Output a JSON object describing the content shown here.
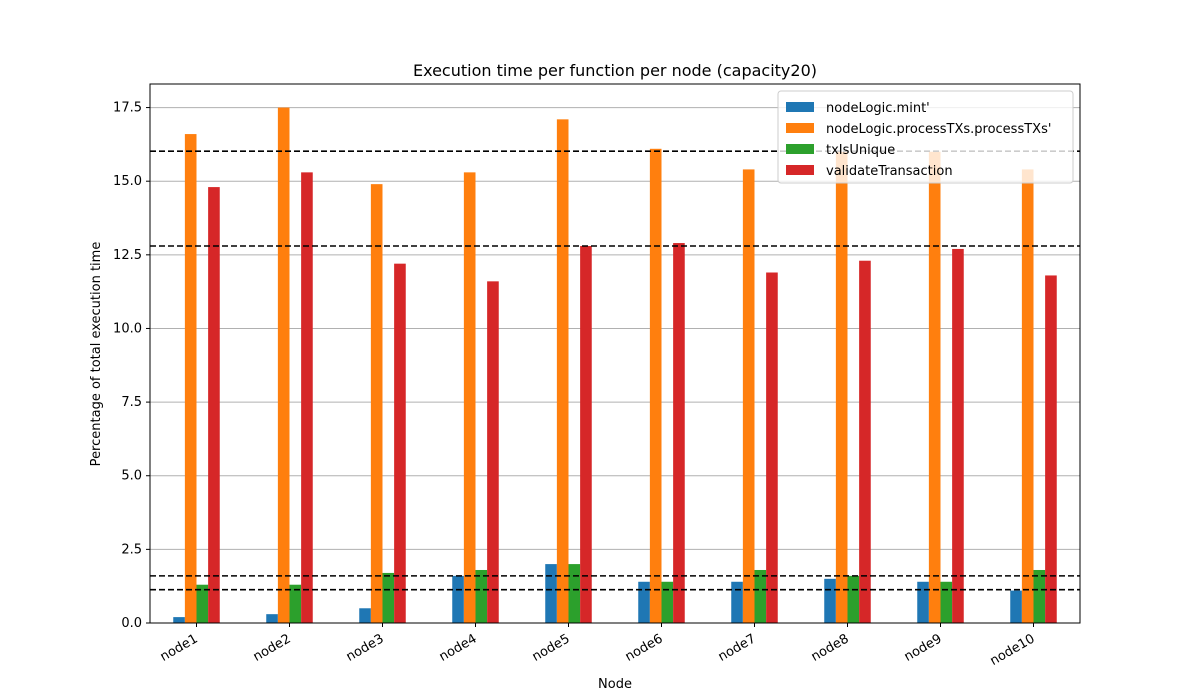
{
  "chart_data": {
    "type": "bar",
    "title": "Execution time per function per node (capacity20)",
    "xlabel": "Node",
    "ylabel": "Percentage of total execution time",
    "categories": [
      "node1",
      "node2",
      "node3",
      "node4",
      "node5",
      "node6",
      "node7",
      "node8",
      "node9",
      "node10"
    ],
    "ylim": [
      0,
      18.3
    ],
    "yticks": [
      "0.0",
      "2.5",
      "5.0",
      "7.5",
      "10.0",
      "12.5",
      "15.0",
      "17.5"
    ],
    "grid": "horizontal",
    "legend_position": "top-right",
    "series": [
      {
        "name": "nodeLogic.mint'",
        "color": "#1f77b4",
        "values": [
          0.2,
          0.3,
          0.5,
          1.6,
          2.0,
          1.4,
          1.4,
          1.5,
          1.4,
          1.1
        ]
      },
      {
        "name": "nodeLogic.processTXs.processTXs'",
        "color": "#ff7f0e",
        "values": [
          16.6,
          17.5,
          14.9,
          15.3,
          17.1,
          16.1,
          15.4,
          16.0,
          16.0,
          15.4
        ]
      },
      {
        "name": "txIsUnique",
        "color": "#2ca02c",
        "values": [
          1.3,
          1.3,
          1.7,
          1.8,
          2.0,
          1.4,
          1.8,
          1.6,
          1.4,
          1.8
        ]
      },
      {
        "name": "validateTransaction",
        "color": "#d62728",
        "values": [
          14.8,
          15.3,
          12.2,
          11.6,
          12.8,
          12.9,
          11.9,
          12.3,
          12.7,
          11.8
        ]
      }
    ],
    "reference_lines": [
      16.02,
      12.8,
      1.6,
      1.13
    ]
  }
}
